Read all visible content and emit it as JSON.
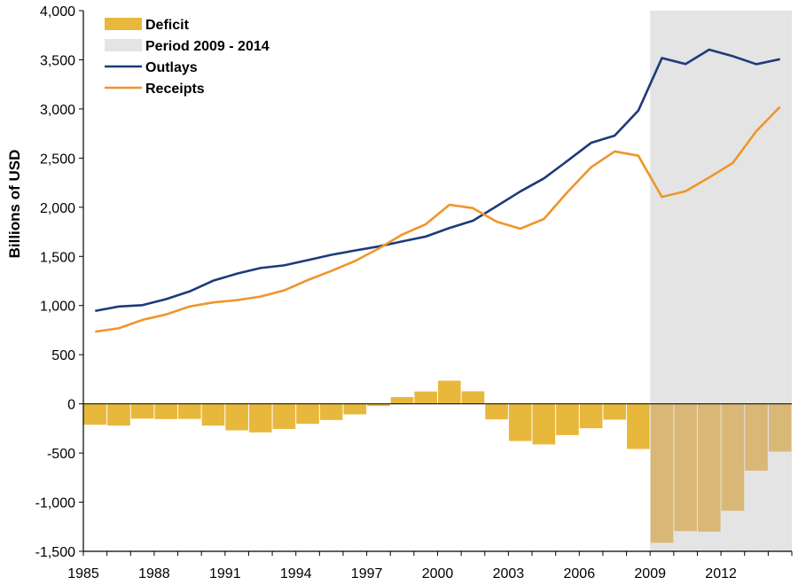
{
  "chart_data": {
    "type": "bar",
    "ylabel": "Billions  of USD",
    "ylim": [
      -1500,
      4000
    ],
    "yticks": [
      4000,
      3500,
      3000,
      2500,
      2000,
      1500,
      1000,
      500,
      0,
      -500,
      -1000,
      -1500
    ],
    "ytick_labels": [
      "4,000",
      "3,500",
      "3,000",
      "2,500",
      "2,000",
      "1,500",
      "1,000",
      "500",
      "0",
      "-500",
      "-1,000",
      "-1,500"
    ],
    "xtick_labels": [
      "1985",
      "1988",
      "1991",
      "1994",
      "1997",
      "2000",
      "2003",
      "2006",
      "2009",
      "2012"
    ],
    "years": [
      1985,
      1986,
      1987,
      1988,
      1989,
      1990,
      1991,
      1992,
      1993,
      1994,
      1995,
      1996,
      1997,
      1998,
      1999,
      2000,
      2001,
      2002,
      2003,
      2004,
      2005,
      2006,
      2007,
      2008,
      2009,
      2010,
      2011,
      2012,
      2013,
      2014
    ],
    "shaded_period": {
      "label": "Period 2009 - 2014",
      "start": 2009,
      "end": 2014,
      "color": "#e4e4e4"
    },
    "legend_position": "top-left",
    "grid": false,
    "series": [
      {
        "name": "Deficit",
        "kind": "bar",
        "color": "#e8b83c",
        "shaded_color": "#d9b877",
        "values": [
          -212,
          -221,
          -150,
          -155,
          -153,
          -221,
          -269,
          -290,
          -255,
          -203,
          -164,
          -107,
          -22,
          69,
          126,
          236,
          128,
          -158,
          -378,
          -413,
          -318,
          -248,
          -161,
          -459,
          -1413,
          -1294,
          -1300,
          -1087,
          -680,
          -485
        ]
      },
      {
        "name": "Outlays",
        "kind": "line",
        "color": "#1f3a7a",
        "values": [
          946,
          990,
          1004,
          1065,
          1144,
          1253,
          1324,
          1382,
          1409,
          1462,
          1516,
          1560,
          1601,
          1652,
          1702,
          1789,
          1863,
          2011,
          2160,
          2293,
          2472,
          2655,
          2729,
          2983,
          3518,
          3457,
          3603,
          3537,
          3455,
          3506
        ]
      },
      {
        "name": "Receipts",
        "kind": "line",
        "color": "#f0952a",
        "values": [
          734,
          769,
          854,
          909,
          991,
          1032,
          1055,
          1091,
          1154,
          1259,
          1352,
          1453,
          1579,
          1722,
          1827,
          2025,
          1991,
          1853,
          1782,
          1880,
          2154,
          2407,
          2568,
          2524,
          2105,
          2163,
          2303,
          2450,
          2775,
          3021
        ]
      }
    ]
  }
}
